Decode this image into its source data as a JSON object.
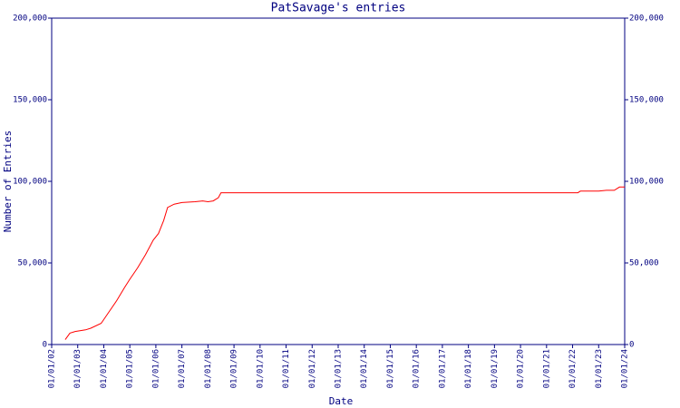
{
  "chart_data": {
    "type": "line",
    "title": "PatSavage's entries",
    "x_label": "Date",
    "y_label": "Number of Entries",
    "xlim": [
      2002,
      2024
    ],
    "xticks": [
      {
        "value": 2002,
        "label": "01/01/02"
      },
      {
        "value": 2003,
        "label": "01/01/03"
      },
      {
        "value": 2004,
        "label": "01/01/04"
      },
      {
        "value": 2005,
        "label": "01/01/05"
      },
      {
        "value": 2006,
        "label": "01/01/06"
      },
      {
        "value": 2007,
        "label": "01/01/07"
      },
      {
        "value": 2008,
        "label": "01/01/08"
      },
      {
        "value": 2009,
        "label": "01/01/09"
      },
      {
        "value": 2010,
        "label": "01/01/10"
      },
      {
        "value": 2011,
        "label": "01/01/11"
      },
      {
        "value": 2012,
        "label": "01/01/12"
      },
      {
        "value": 2013,
        "label": "01/01/13"
      },
      {
        "value": 2014,
        "label": "01/01/14"
      },
      {
        "value": 2015,
        "label": "01/01/15"
      },
      {
        "value": 2016,
        "label": "01/01/16"
      },
      {
        "value": 2017,
        "label": "01/01/17"
      },
      {
        "value": 2018,
        "label": "01/01/18"
      },
      {
        "value": 2019,
        "label": "01/01/19"
      },
      {
        "value": 2020,
        "label": "01/01/20"
      },
      {
        "value": 2021,
        "label": "01/01/21"
      },
      {
        "value": 2022,
        "label": "01/01/22"
      },
      {
        "value": 2023,
        "label": "01/01/23"
      },
      {
        "value": 2024,
        "label": "01/01/24"
      }
    ],
    "ylim": [
      0,
      200000
    ],
    "yticks": [
      0,
      {
        "value": 50000,
        "label": "50,000"
      },
      {
        "value": 100000,
        "label": "100,000"
      },
      {
        "value": 150000,
        "label": "150,000"
      },
      {
        "value": 200000,
        "label": "200,000"
      }
    ],
    "y2lim": [
      0,
      200000
    ],
    "y2ticks": [
      0,
      {
        "value": 50000,
        "label": "50,000"
      },
      {
        "value": 100000,
        "label": "100,000"
      },
      {
        "value": 150000,
        "label": "150,000"
      },
      {
        "value": 200000,
        "label": "200,000"
      }
    ],
    "axis_color": "#000080",
    "series": [
      {
        "color": "#ff0000",
        "x": [
          2002.52,
          2002.7,
          2002.9,
          2003.3,
          2003.5,
          2003.9,
          2004.2,
          2004.5,
          2004.8,
          2005.0,
          2005.3,
          2005.6,
          2005.9,
          2006.1,
          2006.3,
          2006.45,
          2006.7,
          2007.0,
          2007.5,
          2007.8,
          2008.0,
          2008.2,
          2008.4,
          2008.5,
          2022.2,
          2022.3,
          2023.0,
          2023.3,
          2023.6,
          2023.8,
          2024.0
        ],
        "values": [
          3000,
          7000,
          8000,
          9000,
          10000,
          13000,
          20000,
          27000,
          35000,
          40000,
          47000,
          55000,
          64000,
          68000,
          76000,
          84000,
          86000,
          87000,
          87500,
          88000,
          87500,
          88000,
          90000,
          93000,
          93000,
          94000,
          94000,
          94500,
          94500,
          96500,
          96500
        ]
      }
    ]
  }
}
